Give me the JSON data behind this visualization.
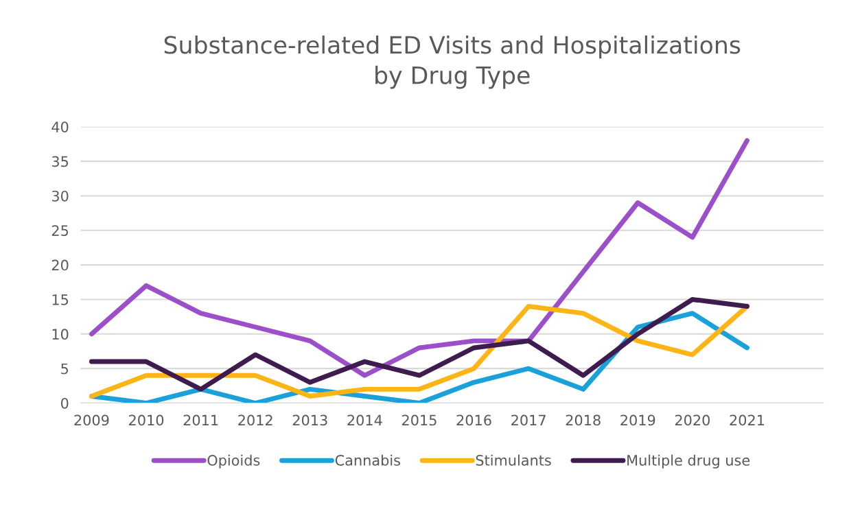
{
  "chart_data": {
    "type": "line",
    "title": "Substance-related ED Visits and Hospitalizations\nby Drug Type",
    "categories": [
      "2009",
      "2010",
      "2011",
      "2012",
      "2013",
      "2014",
      "2015",
      "2016",
      "2017",
      "2018",
      "2019",
      "2020",
      "2021"
    ],
    "series": [
      {
        "name": "Opioids",
        "color": "#9b4fc9",
        "values": [
          10,
          17,
          13,
          11,
          9,
          4,
          8,
          9,
          9,
          19,
          29,
          24,
          38
        ]
      },
      {
        "name": "Cannabis",
        "color": "#1aa1d9",
        "values": [
          1,
          0,
          2,
          0,
          2,
          1,
          0,
          3,
          5,
          2,
          11,
          13,
          8
        ]
      },
      {
        "name": "Stimulants",
        "color": "#fdb515",
        "values": [
          1,
          4,
          4,
          4,
          1,
          2,
          2,
          5,
          14,
          13,
          9,
          7,
          14
        ]
      },
      {
        "name": "Multiple drug use",
        "color": "#3f1c4f",
        "values": [
          6,
          6,
          2,
          7,
          3,
          6,
          4,
          8,
          9,
          4,
          10,
          15,
          14
        ]
      }
    ],
    "ylim": [
      0,
      40
    ],
    "yticks": [
      0,
      5,
      10,
      15,
      20,
      25,
      30,
      35,
      40
    ],
    "grid": "y",
    "legend": "bottom",
    "marker": "none",
    "line_style": "solid"
  }
}
